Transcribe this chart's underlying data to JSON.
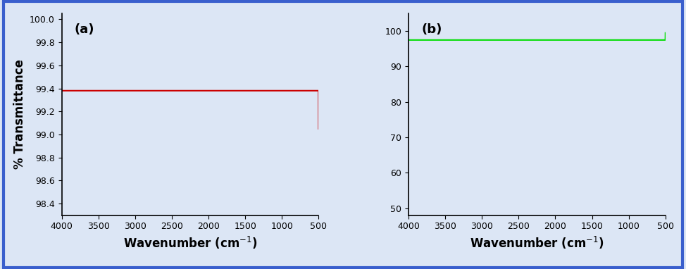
{
  "background_color": "#dce6f5",
  "border_color": "#3a5fcd",
  "line_color_a": "#cc0000",
  "line_color_b": "#00dd00",
  "xlabel": "Wavenumber (cm$^{-1}$)",
  "ylabel_a": "% Transmittance",
  "label_a": "(a)",
  "label_b": "(b)",
  "xlim_a": [
    4000,
    500
  ],
  "xlim_b": [
    4000,
    500
  ],
  "ylim_a": [
    98.3,
    100.05
  ],
  "ylim_b": [
    48,
    105
  ],
  "xticks_a": [
    4000,
    3500,
    3000,
    2500,
    2000,
    1500,
    1000,
    500
  ],
  "xticks_b": [
    4000,
    3500,
    3000,
    2500,
    2000,
    1500,
    1000,
    500
  ],
  "yticks_a": [
    98.4,
    98.6,
    98.8,
    99.0,
    99.2,
    99.4,
    99.6,
    99.8,
    100.0
  ],
  "yticks_b": [
    50,
    60,
    70,
    80,
    90,
    100
  ]
}
